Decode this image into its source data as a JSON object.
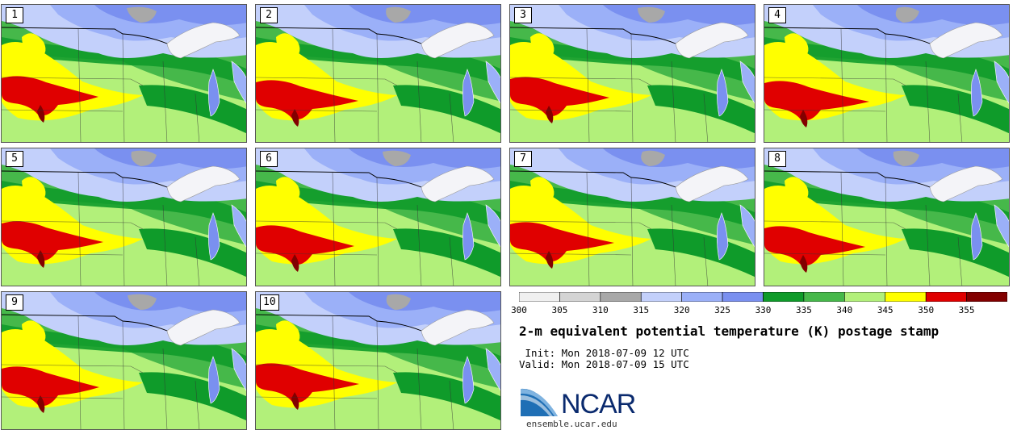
{
  "panels": [
    {
      "label": "1"
    },
    {
      "label": "2"
    },
    {
      "label": "3"
    },
    {
      "label": "4"
    },
    {
      "label": "5"
    },
    {
      "label": "6"
    },
    {
      "label": "7"
    },
    {
      "label": "8"
    },
    {
      "label": "9"
    },
    {
      "label": "10"
    }
  ],
  "colorbar": {
    "bins": [
      {
        "min": 300,
        "max": 305,
        "color": "#f0f0f0"
      },
      {
        "min": 305,
        "max": 310,
        "color": "#d4d4d4"
      },
      {
        "min": 310,
        "max": 315,
        "color": "#a8a8a8"
      },
      {
        "min": 315,
        "max": 320,
        "color": "#c3d0fb"
      },
      {
        "min": 320,
        "max": 325,
        "color": "#9bb0f8"
      },
      {
        "min": 325,
        "max": 330,
        "color": "#7a90f0"
      },
      {
        "min": 330,
        "max": 335,
        "color": "#0f9b2a"
      },
      {
        "min": 335,
        "max": 340,
        "color": "#46b84a"
      },
      {
        "min": 340,
        "max": 345,
        "color": "#b2f07a"
      },
      {
        "min": 345,
        "max": 350,
        "color": "#ffff00"
      },
      {
        "min": 350,
        "max": 355,
        "color": "#e00000"
      },
      {
        "min": 355,
        "max": 360,
        "color": "#820000"
      }
    ],
    "tick_labels": [
      "300",
      "305",
      "310",
      "315",
      "320",
      "325",
      "330",
      "335",
      "340",
      "345",
      "350",
      "355"
    ]
  },
  "title": "2-m equivalent potential temperature (K) postage stamp",
  "init": " Init: Mon 2018-07-09 12 UTC",
  "valid": "Valid: Mon 2018-07-09 15 UTC",
  "logo_text": "NCAR",
  "site": "ensemble.ucar.edu"
}
